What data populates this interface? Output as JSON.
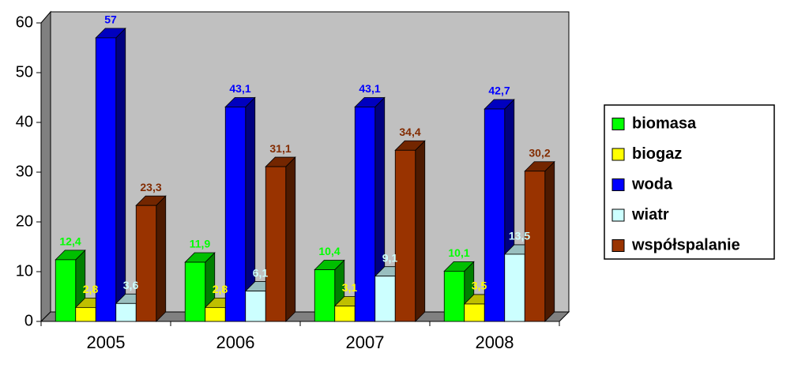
{
  "chart_data": {
    "type": "bar3d",
    "categories": [
      "2005",
      "2006",
      "2007",
      "2008"
    ],
    "series": [
      {
        "name": "biomasa",
        "color": "#00ff00",
        "values": [
          12.4,
          11.9,
          10.4,
          10.1
        ],
        "value_labels": [
          "12,4",
          "11,9",
          "10,4",
          "10,1"
        ]
      },
      {
        "name": "biogaz",
        "color": "#ffff00",
        "values": [
          2.8,
          2.8,
          3.1,
          3.5
        ],
        "value_labels": [
          "2,8",
          "2,8",
          "3,1",
          "3,5"
        ]
      },
      {
        "name": "woda",
        "color": "#0000ff",
        "values": [
          57,
          43.1,
          43.1,
          42.7
        ],
        "value_labels": [
          "57",
          "43,1",
          "43,1",
          "42,7"
        ]
      },
      {
        "name": "wiatr",
        "color": "#ccffff",
        "values": [
          3.6,
          6.1,
          9.1,
          13.5
        ],
        "value_labels": [
          "3,6",
          "6,1",
          "9,1",
          "13,5"
        ]
      },
      {
        "name": "współspalanie",
        "color": "#993300",
        "values": [
          23.3,
          31.1,
          34.4,
          30.2
        ],
        "value_labels": [
          "23,3",
          "31,1",
          "34,4",
          "30,2"
        ]
      }
    ],
    "ylim": [
      0,
      60
    ],
    "yticks": [
      0,
      10,
      20,
      30,
      40,
      50,
      60
    ],
    "legend": "right"
  }
}
